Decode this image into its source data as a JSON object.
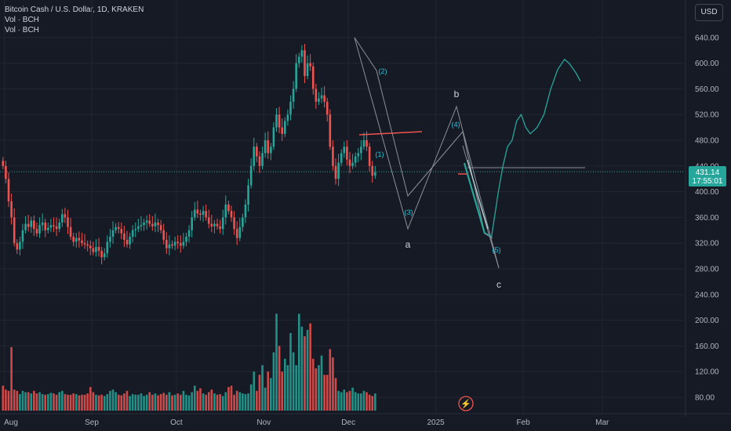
{
  "legend": {
    "symbol": "Bitcoin Cash / U.S. Dollar, 1D, KRAKEN",
    "vol1": "Vol · BCH",
    "vol2": "Vol · BCH"
  },
  "currency_button": "USD",
  "price_tag": {
    "price": "431.14",
    "countdown": "17:55:01"
  },
  "colors": {
    "background": "#161a25",
    "up": "#26a69a",
    "down": "#ef5350",
    "projection": "#26a69a",
    "grid": "#232632",
    "pattern": "#8a8f9c",
    "price_line": "#26a69a"
  },
  "chart_data": {
    "type": "candlestick",
    "price_axis": {
      "ticks": [
        640,
        600,
        560,
        520,
        480,
        440,
        400,
        360,
        320,
        280,
        240,
        200,
        160,
        120,
        80
      ],
      "labels": [
        "640.00",
        "600.00",
        "560.00",
        "520.00",
        "480.00",
        "440.00",
        "400.00",
        "360.00",
        "320.00",
        "280.00",
        "240.00",
        "200.00",
        "160.00",
        "120.00",
        "80.00"
      ]
    },
    "time_axis": [
      {
        "label": "Aug",
        "date": "2024-08-01"
      },
      {
        "label": "Sep",
        "date": "2024-09-01"
      },
      {
        "label": "Oct",
        "date": "2024-10-01"
      },
      {
        "label": "Nov",
        "date": "2024-11-01"
      },
      {
        "label": "Dec",
        "date": "2024-12-01"
      },
      {
        "label": "2025",
        "date": "2025-01-01"
      },
      {
        "label": "Feb",
        "date": "2025-02-01"
      },
      {
        "label": "Mar",
        "date": "2025-03-01"
      }
    ],
    "start_date": "2024-07-31",
    "last_close": 431.14,
    "closes": [
      440,
      420,
      385,
      360,
      320,
      310,
      322,
      340,
      350,
      345,
      355,
      342,
      335,
      348,
      352,
      340,
      344,
      348,
      346,
      342,
      352,
      365,
      360,
      345,
      330,
      322,
      328,
      324,
      320,
      318,
      316,
      312,
      306,
      314,
      308,
      298,
      304,
      322,
      330,
      340,
      345,
      342,
      335,
      325,
      318,
      330,
      340,
      342,
      346,
      348,
      352,
      355,
      350,
      346,
      352,
      348,
      340,
      325,
      312,
      318,
      316,
      322,
      320,
      316,
      322,
      330,
      340,
      360,
      372,
      366,
      364,
      370,
      360,
      350,
      346,
      350,
      346,
      342,
      360,
      380,
      370,
      360,
      342,
      328,
      345,
      360,
      380,
      410,
      440,
      470,
      455,
      440,
      460,
      480,
      460,
      470,
      500,
      520,
      500,
      490,
      510,
      520,
      540,
      560,
      600,
      610,
      620,
      580,
      600,
      595,
      560,
      540,
      545,
      550,
      540,
      520,
      470,
      440,
      420,
      445,
      460,
      470,
      450,
      440,
      445,
      455,
      460,
      470,
      480,
      470,
      440,
      425,
      430
    ],
    "series": [
      {
        "name": "Vol · BCH",
        "type": "volume",
        "values": [
          98,
          92,
          90,
          158,
          92,
          90,
          85,
          90,
          88,
          88,
          86,
          90,
          86,
          88,
          85,
          84,
          85,
          87,
          86,
          84,
          88,
          90,
          85,
          84,
          84,
          86,
          85,
          83,
          84,
          84,
          86,
          96,
          88,
          84,
          83,
          84,
          82,
          85,
          90,
          92,
          88,
          84,
          83,
          86,
          90,
          82,
          85,
          84,
          84,
          86,
          82,
          84,
          88,
          84,
          86,
          83,
          85,
          87,
          84,
          88,
          83,
          84,
          86,
          84,
          90,
          84,
          83,
          88,
          98,
          90,
          94,
          86,
          84,
          88,
          92,
          86,
          84,
          85,
          82,
          88,
          96,
          98,
          84,
          90,
          88,
          86,
          85,
          86,
          100,
          120,
          90,
          115,
          130,
          95,
          120,
          110,
          150,
          210,
          160,
          120,
          140,
          130,
          180,
          150,
          130,
          210,
          190,
          175,
          185,
          195,
          140,
          125,
          130,
          145,
          115,
          115,
          155,
          142,
          110,
          90,
          88,
          92,
          88,
          90,
          95,
          88,
          86,
          86,
          90,
          88,
          84,
          82,
          86
        ]
      },
      {
        "name": "Projection",
        "type": "line",
        "points": [
          [
            440,
            336
          ],
          [
            446,
            330
          ],
          [
            452,
            400
          ],
          [
            456,
            440
          ],
          [
            460,
            470
          ],
          [
            464,
            480
          ],
          [
            468,
            510
          ],
          [
            472,
            520
          ],
          [
            476,
            500
          ],
          [
            480,
            490
          ],
          [
            486,
            500
          ],
          [
            492,
            520
          ],
          [
            498,
            560
          ],
          [
            504,
            590
          ],
          [
            510,
            606
          ],
          [
            514,
            600
          ],
          [
            520,
            585
          ],
          [
            524,
            572
          ]
        ]
      }
    ],
    "wave_labels": [
      "(1)",
      "(2)",
      "(3)",
      "(4)",
      "(5)",
      "a",
      "b",
      "c"
    ]
  }
}
